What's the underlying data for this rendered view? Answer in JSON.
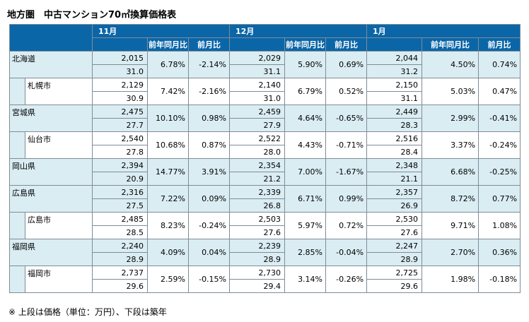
{
  "title": "地方圏　中古マンション70㎡換算価格表",
  "months": [
    "11月",
    "12月",
    "1月"
  ],
  "subheaders": {
    "yoy": "前年同月比",
    "mom": "前月比"
  },
  "rows": [
    {
      "name": "北海道",
      "indent": false,
      "data": [
        {
          "price": "2,015",
          "age": "31.0",
          "yoy": "6.78%",
          "mom": "-2.14%"
        },
        {
          "price": "2,029",
          "age": "31.1",
          "yoy": "5.90%",
          "mom": "0.69%"
        },
        {
          "price": "2,044",
          "age": "31.2",
          "yoy": "4.50%",
          "mom": "0.74%"
        }
      ]
    },
    {
      "name": "札幌市",
      "indent": true,
      "data": [
        {
          "price": "2,129",
          "age": "30.9",
          "yoy": "7.42%",
          "mom": "-2.16%"
        },
        {
          "price": "2,140",
          "age": "31.0",
          "yoy": "6.79%",
          "mom": "0.52%"
        },
        {
          "price": "2,150",
          "age": "31.1",
          "yoy": "5.03%",
          "mom": "0.47%"
        }
      ]
    },
    {
      "name": "宮城県",
      "indent": false,
      "data": [
        {
          "price": "2,475",
          "age": "27.7",
          "yoy": "10.10%",
          "mom": "0.98%"
        },
        {
          "price": "2,459",
          "age": "27.9",
          "yoy": "4.64%",
          "mom": "-0.65%"
        },
        {
          "price": "2,449",
          "age": "28.3",
          "yoy": "2.99%",
          "mom": "-0.41%"
        }
      ]
    },
    {
      "name": "仙台市",
      "indent": true,
      "data": [
        {
          "price": "2,540",
          "age": "27.8",
          "yoy": "10.68%",
          "mom": "0.87%"
        },
        {
          "price": "2,522",
          "age": "28.0",
          "yoy": "4.43%",
          "mom": "-0.71%"
        },
        {
          "price": "2,516",
          "age": "28.4",
          "yoy": "3.37%",
          "mom": "-0.24%"
        }
      ]
    },
    {
      "name": "岡山県",
      "indent": false,
      "data": [
        {
          "price": "2,394",
          "age": "20.9",
          "yoy": "14.77%",
          "mom": "3.91%"
        },
        {
          "price": "2,354",
          "age": "21.2",
          "yoy": "7.00%",
          "mom": "-1.67%"
        },
        {
          "price": "2,348",
          "age": "21.1",
          "yoy": "6.68%",
          "mom": "-0.25%"
        }
      ]
    },
    {
      "name": "広島県",
      "indent": false,
      "data": [
        {
          "price": "2,316",
          "age": "27.5",
          "yoy": "7.22%",
          "mom": "0.09%"
        },
        {
          "price": "2,339",
          "age": "26.8",
          "yoy": "6.71%",
          "mom": "0.99%"
        },
        {
          "price": "2,357",
          "age": "26.9",
          "yoy": "8.72%",
          "mom": "0.77%"
        }
      ]
    },
    {
      "name": "広島市",
      "indent": true,
      "data": [
        {
          "price": "2,485",
          "age": "28.5",
          "yoy": "8.23%",
          "mom": "-0.24%"
        },
        {
          "price": "2,503",
          "age": "27.6",
          "yoy": "5.97%",
          "mom": "0.72%"
        },
        {
          "price": "2,530",
          "age": "27.6",
          "yoy": "9.71%",
          "mom": "1.08%"
        }
      ]
    },
    {
      "name": "福岡県",
      "indent": false,
      "data": [
        {
          "price": "2,240",
          "age": "28.9",
          "yoy": "4.09%",
          "mom": "0.04%"
        },
        {
          "price": "2,239",
          "age": "28.9",
          "yoy": "2.85%",
          "mom": "-0.04%"
        },
        {
          "price": "2,247",
          "age": "28.9",
          "yoy": "2.70%",
          "mom": "0.36%"
        }
      ]
    },
    {
      "name": "福岡市",
      "indent": true,
      "data": [
        {
          "price": "2,737",
          "age": "29.6",
          "yoy": "2.59%",
          "mom": "-0.15%"
        },
        {
          "price": "2,730",
          "age": "29.4",
          "yoy": "3.14%",
          "mom": "-0.26%"
        },
        {
          "price": "2,725",
          "age": "29.6",
          "yoy": "1.98%",
          "mom": "-0.18%"
        }
      ]
    }
  ],
  "footnote": "※ 上段は価格（単位：万円）、下段は築年"
}
